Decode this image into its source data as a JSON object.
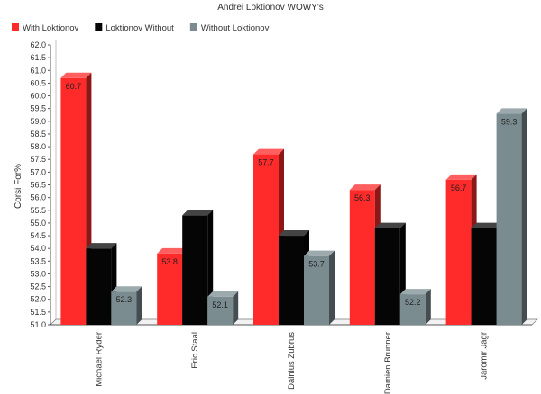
{
  "chart_data": {
    "type": "bar",
    "title": "Andrei Loktionov WOWY's",
    "ylabel": "Corsi For%",
    "xlabel": "",
    "categories": [
      "Michael Ryder",
      "Eric Staal",
      "Dainius Zubrus",
      "Damien Brunner",
      "Jaromir Jagr"
    ],
    "series": [
      {
        "name": "With Loktionov",
        "color": "#ff2a2a",
        "values": [
          60.7,
          53.8,
          57.7,
          56.3,
          56.7
        ]
      },
      {
        "name": "Loktionov Without",
        "color": "#050505",
        "values": [
          54.0,
          55.3,
          54.5,
          54.8,
          54.8
        ]
      },
      {
        "name": "Without Loktionov",
        "color": "#7b8c91",
        "values": [
          52.3,
          52.1,
          53.7,
          52.2,
          59.3
        ]
      }
    ],
    "data_labels": [
      [
        "60.7",
        "53.8",
        "57.7",
        "56.3",
        "56.7"
      ],
      [
        "",
        "",
        "",
        "",
        ""
      ],
      [
        "52.3",
        "52.1",
        "53.7",
        "52.2",
        "59.3"
      ]
    ],
    "ylim": [
      51.0,
      62.0
    ],
    "ytick_step": 0.5,
    "grid": false,
    "legend_position": "top-left"
  }
}
